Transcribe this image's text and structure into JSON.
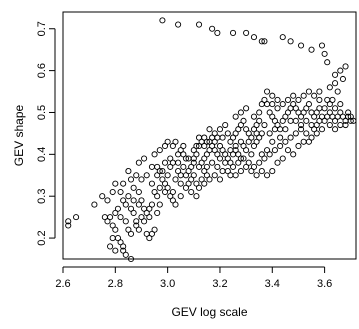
{
  "chart_data": {
    "type": "scatter",
    "title": "",
    "xlabel": "GEV log scale",
    "ylabel": "GEV shape",
    "xlim": [
      2.6,
      3.72
    ],
    "ylim": [
      0.15,
      0.74
    ],
    "xticks": [
      2.6,
      2.8,
      3.0,
      3.2,
      3.4,
      3.6
    ],
    "xtick_labels": [
      "2.6",
      "2.8",
      "3.0",
      "3.2",
      "3.4",
      "3.6"
    ],
    "yticks": [
      0.2,
      0.3,
      0.4,
      0.5,
      0.6,
      0.7
    ],
    "ytick_labels": [
      "0.2",
      "0.3",
      "0.4",
      "0.5",
      "0.6",
      "0.7"
    ],
    "grid": false,
    "legend": "none",
    "point_style": "open-circle",
    "points": [
      [
        2.98,
        0.72
      ],
      [
        3.04,
        0.71
      ],
      [
        3.12,
        0.71
      ],
      [
        3.17,
        0.7
      ],
      [
        3.19,
        0.69
      ],
      [
        3.25,
        0.69
      ],
      [
        3.3,
        0.69
      ],
      [
        3.33,
        0.68
      ],
      [
        3.36,
        0.67
      ],
      [
        3.37,
        0.67
      ],
      [
        3.44,
        0.68
      ],
      [
        3.47,
        0.67
      ],
      [
        3.51,
        0.66
      ],
      [
        3.55,
        0.65
      ],
      [
        3.59,
        0.66
      ],
      [
        3.6,
        0.64
      ],
      [
        3.61,
        0.62
      ],
      [
        3.64,
        0.59
      ],
      [
        3.66,
        0.6
      ],
      [
        3.67,
        0.58
      ],
      [
        3.68,
        0.61
      ],
      [
        3.64,
        0.57
      ],
      [
        3.65,
        0.55
      ],
      [
        3.58,
        0.55
      ],
      [
        3.62,
        0.56
      ],
      [
        2.62,
        0.24
      ],
      [
        2.62,
        0.23
      ],
      [
        2.65,
        0.25
      ],
      [
        2.72,
        0.28
      ],
      [
        2.76,
        0.25
      ],
      [
        2.77,
        0.24
      ],
      [
        2.78,
        0.25
      ],
      [
        2.79,
        0.23
      ],
      [
        2.8,
        0.22
      ],
      [
        2.81,
        0.2
      ],
      [
        2.82,
        0.19
      ],
      [
        2.83,
        0.17
      ],
      [
        2.84,
        0.16
      ],
      [
        2.86,
        0.15
      ],
      [
        2.8,
        0.26
      ],
      [
        2.82,
        0.25
      ],
      [
        2.84,
        0.24
      ],
      [
        2.85,
        0.22
      ],
      [
        2.86,
        0.21
      ],
      [
        2.84,
        0.28
      ],
      [
        2.86,
        0.27
      ],
      [
        2.87,
        0.26
      ],
      [
        2.88,
        0.24
      ],
      [
        2.88,
        0.23
      ],
      [
        2.89,
        0.22
      ],
      [
        2.78,
        0.18
      ],
      [
        2.8,
        0.17
      ],
      [
        2.83,
        0.18
      ],
      [
        2.79,
        0.2
      ],
      [
        2.81,
        0.27
      ],
      [
        2.83,
        0.29
      ],
      [
        2.85,
        0.3
      ],
      [
        2.87,
        0.32
      ],
      [
        2.89,
        0.31
      ],
      [
        2.9,
        0.29
      ],
      [
        2.91,
        0.27
      ],
      [
        2.92,
        0.26
      ],
      [
        2.93,
        0.25
      ],
      [
        2.92,
        0.21
      ],
      [
        2.94,
        0.21
      ],
      [
        2.95,
        0.22
      ],
      [
        2.93,
        0.2
      ],
      [
        2.9,
        0.34
      ],
      [
        2.92,
        0.35
      ],
      [
        2.94,
        0.33
      ],
      [
        2.95,
        0.31
      ],
      [
        2.96,
        0.3
      ],
      [
        2.97,
        0.28
      ],
      [
        2.88,
        0.35
      ],
      [
        2.86,
        0.34
      ],
      [
        2.83,
        0.33
      ],
      [
        2.85,
        0.36
      ],
      [
        2.89,
        0.38
      ],
      [
        2.91,
        0.39
      ],
      [
        2.96,
        0.37
      ],
      [
        2.97,
        0.36
      ],
      [
        2.98,
        0.34
      ],
      [
        2.99,
        0.33
      ],
      [
        3.0,
        0.32
      ],
      [
        3.01,
        0.3
      ],
      [
        3.02,
        0.31
      ],
      [
        3.02,
        0.29
      ],
      [
        3.03,
        0.34
      ],
      [
        3.04,
        0.36
      ],
      [
        3.05,
        0.35
      ],
      [
        2.95,
        0.4
      ],
      [
        2.97,
        0.41
      ],
      [
        2.99,
        0.42
      ],
      [
        3.0,
        0.43
      ],
      [
        3.02,
        0.42
      ],
      [
        3.03,
        0.43
      ],
      [
        3.05,
        0.41
      ],
      [
        3.06,
        0.4
      ],
      [
        3.07,
        0.39
      ],
      [
        3.06,
        0.37
      ],
      [
        3.08,
        0.36
      ],
      [
        3.09,
        0.34
      ],
      [
        3.08,
        0.33
      ],
      [
        3.1,
        0.35
      ],
      [
        3.11,
        0.33
      ],
      [
        3.12,
        0.32
      ],
      [
        3.13,
        0.34
      ],
      [
        3.14,
        0.36
      ],
      [
        3.15,
        0.35
      ],
      [
        3.12,
        0.37
      ],
      [
        3.13,
        0.38
      ],
      [
        3.14,
        0.39
      ],
      [
        3.15,
        0.4
      ],
      [
        3.16,
        0.41
      ],
      [
        3.17,
        0.42
      ],
      [
        3.18,
        0.41
      ],
      [
        3.19,
        0.4
      ],
      [
        3.11,
        0.4
      ],
      [
        3.1,
        0.41
      ],
      [
        3.12,
        0.42
      ],
      [
        3.13,
        0.43
      ],
      [
        3.14,
        0.44
      ],
      [
        3.16,
        0.43
      ],
      [
        3.18,
        0.43
      ],
      [
        3.2,
        0.42
      ],
      [
        3.21,
        0.41
      ],
      [
        3.22,
        0.4
      ],
      [
        3.23,
        0.39
      ],
      [
        3.24,
        0.38
      ],
      [
        3.25,
        0.4
      ],
      [
        3.26,
        0.41
      ],
      [
        3.24,
        0.43
      ],
      [
        3.25,
        0.44
      ],
      [
        3.26,
        0.45
      ],
      [
        3.27,
        0.46
      ],
      [
        3.28,
        0.47
      ],
      [
        3.29,
        0.48
      ],
      [
        3.3,
        0.46
      ],
      [
        3.31,
        0.45
      ],
      [
        3.28,
        0.43
      ],
      [
        3.29,
        0.42
      ],
      [
        3.3,
        0.41
      ],
      [
        3.32,
        0.4
      ],
      [
        3.33,
        0.42
      ],
      [
        3.34,
        0.43
      ],
      [
        3.35,
        0.44
      ],
      [
        3.36,
        0.45
      ],
      [
        3.34,
        0.47
      ],
      [
        3.33,
        0.49
      ],
      [
        3.35,
        0.5
      ],
      [
        3.36,
        0.52
      ],
      [
        3.37,
        0.53
      ],
      [
        3.38,
        0.52
      ],
      [
        3.39,
        0.5
      ],
      [
        3.4,
        0.49
      ],
      [
        3.41,
        0.48
      ],
      [
        3.42,
        0.47
      ],
      [
        3.43,
        0.46
      ],
      [
        3.44,
        0.48
      ],
      [
        3.45,
        0.49
      ],
      [
        3.46,
        0.5
      ],
      [
        3.47,
        0.51
      ],
      [
        3.48,
        0.52
      ],
      [
        3.49,
        0.51
      ],
      [
        3.5,
        0.5
      ],
      [
        3.51,
        0.49
      ],
      [
        3.52,
        0.5
      ],
      [
        3.53,
        0.51
      ],
      [
        3.54,
        0.52
      ],
      [
        3.55,
        0.5
      ],
      [
        3.56,
        0.49
      ],
      [
        3.57,
        0.5
      ],
      [
        3.58,
        0.51
      ],
      [
        3.59,
        0.49
      ],
      [
        3.6,
        0.48
      ],
      [
        3.61,
        0.49
      ],
      [
        3.62,
        0.5
      ],
      [
        3.63,
        0.49
      ],
      [
        3.64,
        0.48
      ],
      [
        3.65,
        0.49
      ],
      [
        3.66,
        0.5
      ],
      [
        3.67,
        0.49
      ],
      [
        3.68,
        0.48
      ],
      [
        3.69,
        0.49
      ],
      [
        3.7,
        0.48
      ],
      [
        3.71,
        0.48
      ],
      [
        3.6,
        0.51
      ],
      [
        3.62,
        0.52
      ],
      [
        3.64,
        0.51
      ],
      [
        3.66,
        0.52
      ],
      [
        3.63,
        0.53
      ],
      [
        3.61,
        0.53
      ],
      [
        3.58,
        0.53
      ],
      [
        3.56,
        0.54
      ],
      [
        3.54,
        0.55
      ],
      [
        3.52,
        0.54
      ],
      [
        3.5,
        0.53
      ],
      [
        3.48,
        0.54
      ],
      [
        3.46,
        0.53
      ],
      [
        3.44,
        0.52
      ],
      [
        3.42,
        0.51
      ],
      [
        3.4,
        0.52
      ],
      [
        3.38,
        0.55
      ],
      [
        3.4,
        0.54
      ],
      [
        3.42,
        0.53
      ],
      [
        3.3,
        0.51
      ],
      [
        3.28,
        0.5
      ],
      [
        3.26,
        0.49
      ],
      [
        3.22,
        0.47
      ],
      [
        3.2,
        0.46
      ],
      [
        3.18,
        0.45
      ],
      [
        3.16,
        0.46
      ],
      [
        3.21,
        0.44
      ],
      [
        3.23,
        0.45
      ],
      [
        3.1,
        0.38
      ],
      [
        3.08,
        0.39
      ],
      [
        3.06,
        0.42
      ],
      [
        3.04,
        0.4
      ],
      [
        3.01,
        0.39
      ],
      [
        2.99,
        0.38
      ],
      [
        2.98,
        0.36
      ],
      [
        2.96,
        0.35
      ],
      [
        2.94,
        0.37
      ],
      [
        3.07,
        0.32
      ],
      [
        3.09,
        0.31
      ],
      [
        3.11,
        0.3
      ],
      [
        3.05,
        0.3
      ],
      [
        3.03,
        0.28
      ],
      [
        3.15,
        0.37
      ],
      [
        3.17,
        0.38
      ],
      [
        3.19,
        0.37
      ],
      [
        3.21,
        0.36
      ],
      [
        3.23,
        0.36
      ],
      [
        3.25,
        0.37
      ],
      [
        3.27,
        0.38
      ],
      [
        3.29,
        0.39
      ],
      [
        3.31,
        0.38
      ],
      [
        3.33,
        0.37
      ],
      [
        3.35,
        0.38
      ],
      [
        3.37,
        0.39
      ],
      [
        3.39,
        0.4
      ],
      [
        3.41,
        0.41
      ],
      [
        3.43,
        0.42
      ],
      [
        3.45,
        0.43
      ],
      [
        3.47,
        0.44
      ],
      [
        3.49,
        0.45
      ],
      [
        3.51,
        0.46
      ],
      [
        3.53,
        0.45
      ],
      [
        3.55,
        0.44
      ],
      [
        3.57,
        0.45
      ],
      [
        3.59,
        0.46
      ],
      [
        3.52,
        0.43
      ],
      [
        3.5,
        0.42
      ],
      [
        3.48,
        0.4
      ],
      [
        3.46,
        0.41
      ],
      [
        3.44,
        0.39
      ],
      [
        3.42,
        0.38
      ],
      [
        3.4,
        0.36
      ],
      [
        3.38,
        0.35
      ],
      [
        3.36,
        0.36
      ],
      [
        3.34,
        0.35
      ],
      [
        3.32,
        0.36
      ],
      [
        3.3,
        0.37
      ],
      [
        3.28,
        0.36
      ],
      [
        3.26,
        0.35
      ],
      [
        3.24,
        0.35
      ],
      [
        3.2,
        0.34
      ],
      [
        3.18,
        0.35
      ],
      [
        3.16,
        0.34
      ],
      [
        3.14,
        0.33
      ],
      [
        3.36,
        0.4
      ],
      [
        3.38,
        0.41
      ],
      [
        3.4,
        0.43
      ],
      [
        3.39,
        0.45
      ],
      [
        3.37,
        0.47
      ],
      [
        3.35,
        0.48
      ],
      [
        3.41,
        0.46
      ],
      [
        3.43,
        0.44
      ],
      [
        3.45,
        0.46
      ],
      [
        3.47,
        0.48
      ],
      [
        3.49,
        0.48
      ],
      [
        3.51,
        0.47
      ],
      [
        3.53,
        0.48
      ],
      [
        3.55,
        0.47
      ],
      [
        3.57,
        0.47
      ],
      [
        3.62,
        0.47
      ],
      [
        3.64,
        0.46
      ],
      [
        3.66,
        0.47
      ],
      [
        3.68,
        0.47
      ],
      [
        3.69,
        0.5
      ],
      [
        3.7,
        0.49
      ],
      [
        3.58,
        0.48
      ],
      [
        3.56,
        0.46
      ],
      [
        3.54,
        0.43
      ],
      [
        2.75,
        0.3
      ],
      [
        2.77,
        0.29
      ],
      [
        2.79,
        0.31
      ],
      [
        2.8,
        0.33
      ],
      [
        2.82,
        0.31
      ],
      [
        2.87,
        0.29
      ],
      [
        2.89,
        0.28
      ],
      [
        2.9,
        0.25
      ],
      [
        2.91,
        0.24
      ],
      [
        2.93,
        0.27
      ],
      [
        2.94,
        0.28
      ],
      [
        2.96,
        0.26
      ],
      [
        2.97,
        0.32
      ],
      [
        2.99,
        0.31
      ],
      [
        3.0,
        0.35
      ],
      [
        3.01,
        0.37
      ],
      [
        3.02,
        0.38
      ],
      [
        3.04,
        0.38
      ],
      [
        3.05,
        0.33
      ],
      [
        3.07,
        0.35
      ],
      [
        3.09,
        0.37
      ],
      [
        3.1,
        0.39
      ],
      [
        3.11,
        0.42
      ],
      [
        3.12,
        0.44
      ],
      [
        3.14,
        0.42
      ],
      [
        3.15,
        0.43
      ],
      [
        3.17,
        0.44
      ],
      [
        3.19,
        0.44
      ],
      [
        3.2,
        0.39
      ],
      [
        3.22,
        0.38
      ],
      [
        3.24,
        0.41
      ],
      [
        3.26,
        0.42
      ],
      [
        3.27,
        0.4
      ],
      [
        3.28,
        0.39
      ],
      [
        3.31,
        0.43
      ],
      [
        3.32,
        0.44
      ],
      [
        3.33,
        0.46
      ],
      [
        3.34,
        0.45
      ]
    ]
  }
}
